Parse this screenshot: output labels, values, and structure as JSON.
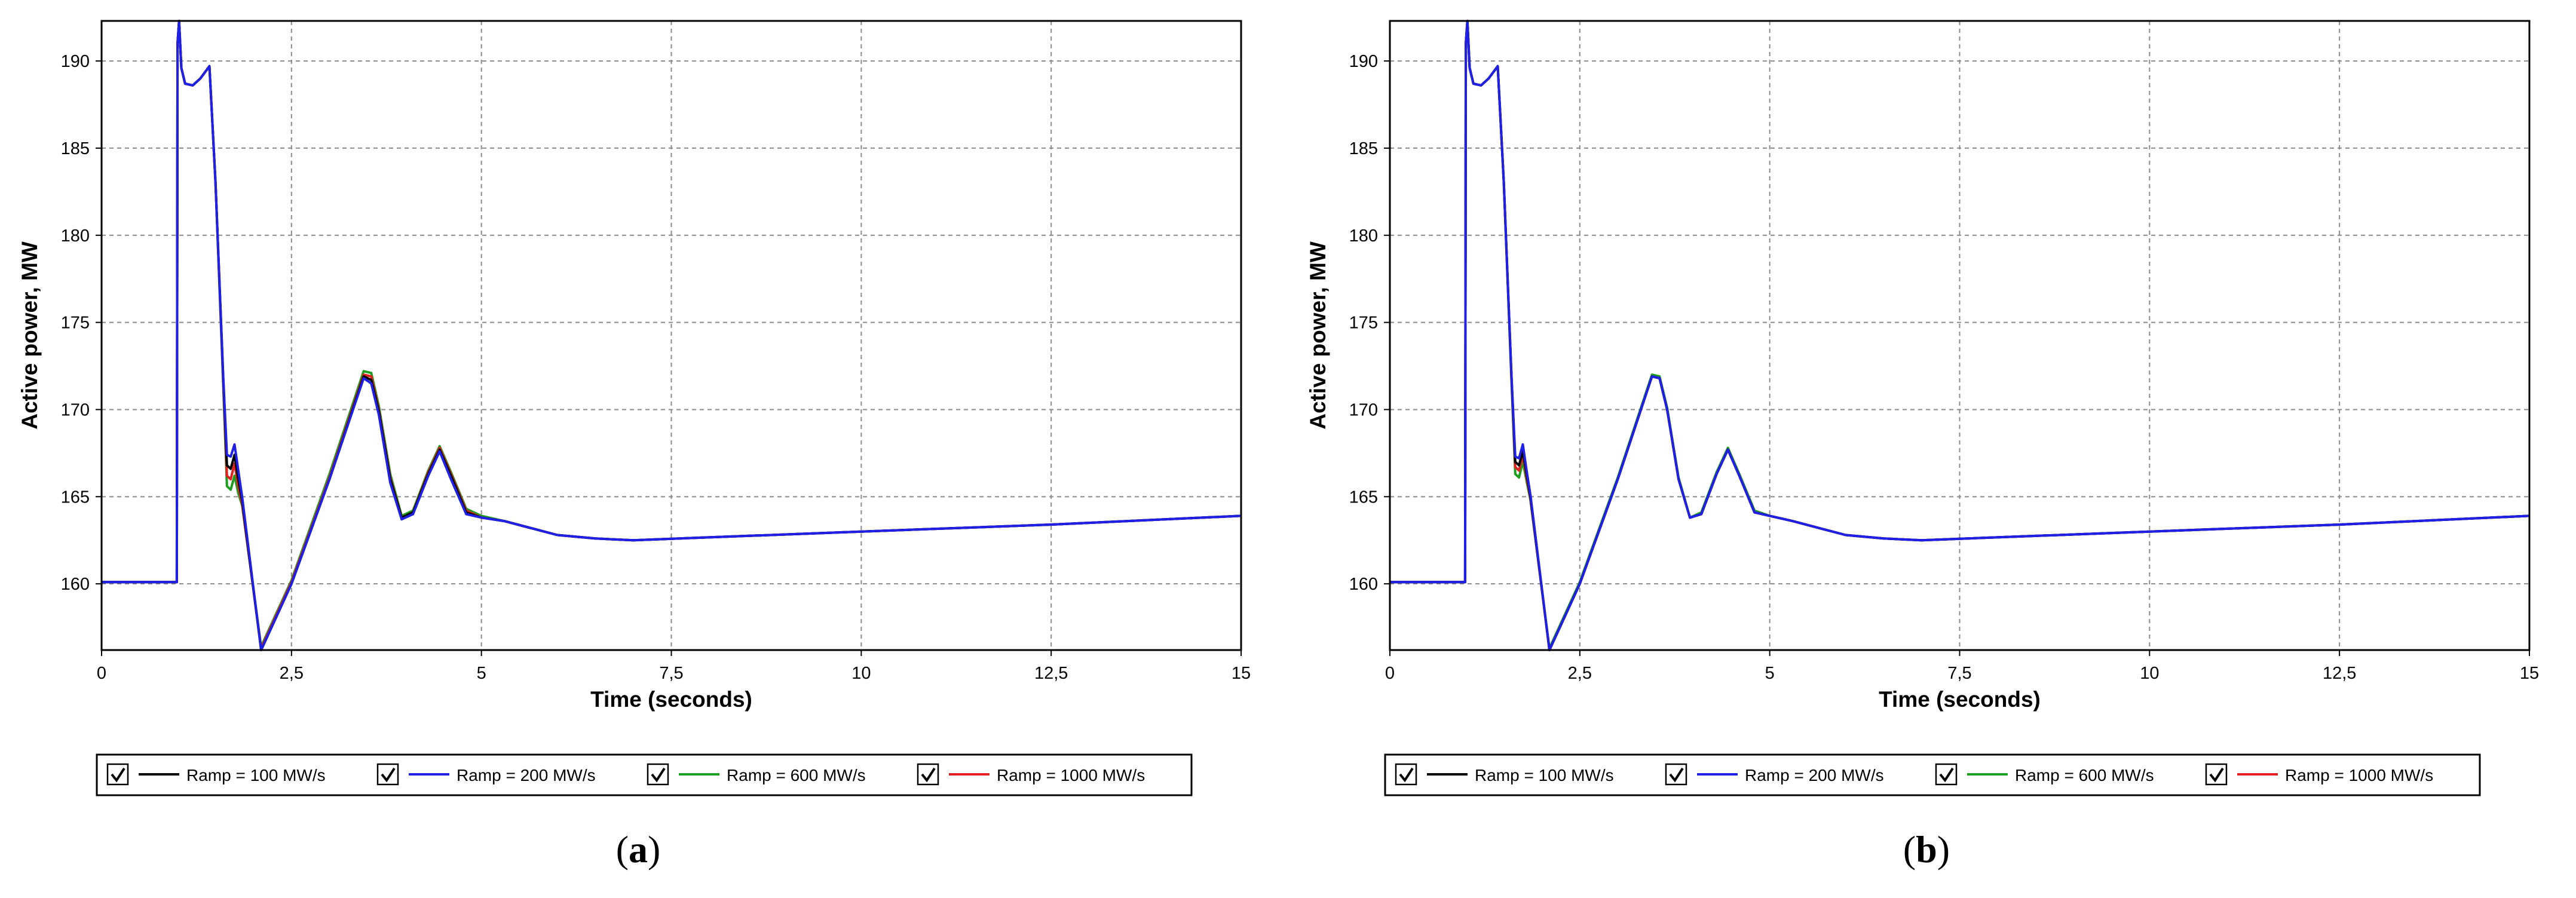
{
  "chart_data": [
    {
      "panel": "a",
      "type": "line",
      "xlabel": "Time (seconds)",
      "ylabel": "Active power, MW",
      "xlim": [
        0,
        15
      ],
      "ylim": [
        156.2,
        192.3
      ],
      "xticks": [
        0,
        2.5,
        5,
        7.5,
        10,
        12.5,
        15
      ],
      "xtick_labels": [
        "0",
        "2,5",
        "5",
        "7,5",
        "10",
        "12,5",
        "15"
      ],
      "yticks": [
        160,
        165,
        170,
        175,
        180,
        185,
        190
      ],
      "ytick_labels": [
        "160",
        "165",
        "170",
        "175",
        "180",
        "185",
        "190"
      ],
      "grid": true,
      "legend_position": "bottom",
      "legend": [
        "Ramp = 100 MW/s",
        "Ramp = 200 MW/s",
        "Ramp = 600 MW/s",
        "Ramp = 1000 MW/s"
      ],
      "series": [
        {
          "name": "Ramp = 100 MW/s",
          "color": "#000000",
          "x": [
            0,
            0.99,
            1.0,
            1.02,
            1.05,
            1.1,
            1.2,
            1.3,
            1.42,
            1.5,
            1.6,
            1.65,
            1.7,
            1.75,
            1.8,
            1.85,
            2.1,
            2.5,
            3.0,
            3.45,
            3.55,
            3.65,
            3.8,
            3.95,
            4.1,
            4.3,
            4.45,
            4.6,
            4.8,
            5.0,
            5.3,
            6.0,
            6.5,
            7.0,
            10.0,
            12.5,
            15.0
          ],
          "y": [
            160.1,
            160.1,
            191.0,
            192.3,
            189.6,
            188.7,
            188.6,
            189.0,
            189.7,
            183.0,
            172.0,
            166.8,
            166.6,
            167.4,
            166.0,
            164.8,
            156.2,
            160.0,
            166.0,
            171.9,
            171.7,
            169.9,
            166.0,
            163.8,
            164.1,
            166.3,
            167.7,
            166.2,
            164.1,
            163.8,
            163.6,
            162.8,
            162.6,
            162.5,
            163.0,
            163.4,
            163.9
          ]
        },
        {
          "name": "Ramp = 200 MW/s",
          "color": "#1f1fe6",
          "x": [
            0,
            0.99,
            1.0,
            1.02,
            1.05,
            1.1,
            1.2,
            1.3,
            1.42,
            1.5,
            1.6,
            1.65,
            1.7,
            1.75,
            1.8,
            1.85,
            2.1,
            2.5,
            3.0,
            3.45,
            3.55,
            3.65,
            3.8,
            3.95,
            4.1,
            4.3,
            4.45,
            4.6,
            4.8,
            5.0,
            5.3,
            6.0,
            6.5,
            7.0,
            10.0,
            12.5,
            15.0
          ],
          "y": [
            160.1,
            160.1,
            191.0,
            192.3,
            189.6,
            188.7,
            188.6,
            189.0,
            189.7,
            183.0,
            172.0,
            167.4,
            167.3,
            168.0,
            166.5,
            165.0,
            156.2,
            160.0,
            166.0,
            171.8,
            171.5,
            169.7,
            165.8,
            163.7,
            164.0,
            166.2,
            167.6,
            166.0,
            164.0,
            163.8,
            163.6,
            162.8,
            162.6,
            162.5,
            163.0,
            163.4,
            163.9
          ]
        },
        {
          "name": "Ramp = 600 MW/s",
          "color": "#1e9e1e",
          "x": [
            0,
            0.99,
            1.0,
            1.02,
            1.05,
            1.1,
            1.2,
            1.3,
            1.42,
            1.5,
            1.6,
            1.65,
            1.7,
            1.75,
            1.8,
            1.85,
            2.1,
            2.5,
            3.0,
            3.45,
            3.55,
            3.65,
            3.8,
            3.95,
            4.1,
            4.3,
            4.45,
            4.6,
            4.8,
            5.0,
            5.3,
            6.0,
            6.5,
            7.0,
            10.0,
            12.5,
            15.0
          ],
          "y": [
            160.1,
            160.1,
            191.0,
            192.3,
            189.6,
            188.7,
            188.6,
            189.0,
            189.7,
            183.0,
            171.5,
            165.6,
            165.4,
            166.2,
            165.2,
            164.5,
            156.4,
            160.2,
            166.3,
            172.2,
            172.1,
            170.2,
            166.3,
            163.9,
            164.2,
            166.5,
            167.9,
            166.4,
            164.3,
            163.9,
            163.6,
            162.8,
            162.6,
            162.5,
            163.0,
            163.4,
            163.9
          ]
        },
        {
          "name": "Ramp = 1000 MW/s",
          "color": "#e02020",
          "x": [
            0,
            0.99,
            1.0,
            1.02,
            1.05,
            1.1,
            1.2,
            1.3,
            1.42,
            1.5,
            1.6,
            1.65,
            1.7,
            1.75,
            1.8,
            1.85,
            2.1,
            2.5,
            3.0,
            3.45,
            3.55,
            3.65,
            3.8,
            3.95,
            4.1,
            4.3,
            4.45,
            4.6,
            4.8,
            5.0,
            5.3,
            6.0,
            6.5,
            7.0,
            10.0,
            12.5,
            15.0
          ],
          "y": [
            160.1,
            160.1,
            191.0,
            192.3,
            189.6,
            188.7,
            188.6,
            189.0,
            189.7,
            183.0,
            171.8,
            166.2,
            166.0,
            166.9,
            165.6,
            164.6,
            156.3,
            160.1,
            166.1,
            172.0,
            171.9,
            170.0,
            166.1,
            163.8,
            164.1,
            166.4,
            167.8,
            166.3,
            164.2,
            163.8,
            163.6,
            162.8,
            162.6,
            162.5,
            163.0,
            163.4,
            163.9
          ]
        }
      ]
    },
    {
      "panel": "b",
      "type": "line",
      "xlabel": "Time (seconds)",
      "ylabel": "Active power, MW",
      "xlim": [
        0,
        15
      ],
      "ylim": [
        156.2,
        192.3
      ],
      "xticks": [
        0,
        2.5,
        5,
        7.5,
        10,
        12.5,
        15
      ],
      "xtick_labels": [
        "0",
        "2,5",
        "5",
        "7,5",
        "10",
        "12,5",
        "15"
      ],
      "yticks": [
        160,
        165,
        170,
        175,
        180,
        185,
        190
      ],
      "ytick_labels": [
        "160",
        "165",
        "170",
        "175",
        "180",
        "185",
        "190"
      ],
      "grid": true,
      "legend_position": "bottom",
      "legend": [
        "Ramp = 100 MW/s",
        "Ramp = 200 MW/s",
        "Ramp = 600 MW/s",
        "Ramp = 1000 MW/s"
      ],
      "series": [
        {
          "name": "Ramp = 100 MW/s",
          "color": "#000000",
          "x": [
            0,
            0.99,
            1.0,
            1.02,
            1.05,
            1.1,
            1.2,
            1.3,
            1.42,
            1.5,
            1.6,
            1.65,
            1.7,
            1.75,
            1.8,
            1.85,
            2.1,
            2.5,
            3.0,
            3.45,
            3.55,
            3.65,
            3.8,
            3.95,
            4.1,
            4.3,
            4.45,
            4.6,
            4.8,
            5.0,
            5.3,
            6.0,
            6.5,
            7.0,
            10.0,
            12.5,
            15.0
          ],
          "y": [
            160.1,
            160.1,
            191.0,
            192.3,
            189.6,
            188.7,
            188.6,
            189.0,
            189.7,
            183.0,
            172.0,
            167.0,
            166.8,
            167.6,
            166.3,
            165.0,
            156.2,
            160.0,
            166.0,
            171.9,
            171.8,
            170.0,
            166.0,
            163.8,
            164.0,
            166.3,
            167.7,
            166.2,
            164.1,
            163.9,
            163.6,
            162.8,
            162.6,
            162.5,
            163.0,
            163.4,
            163.9
          ]
        },
        {
          "name": "Ramp = 200 MW/s",
          "color": "#1f1fe6",
          "x": [
            0,
            0.99,
            1.0,
            1.02,
            1.05,
            1.1,
            1.2,
            1.3,
            1.42,
            1.5,
            1.6,
            1.65,
            1.7,
            1.75,
            1.8,
            1.85,
            2.1,
            2.5,
            3.0,
            3.45,
            3.55,
            3.65,
            3.8,
            3.95,
            4.1,
            4.3,
            4.45,
            4.6,
            4.8,
            5.0,
            5.3,
            6.0,
            6.5,
            7.0,
            10.0,
            12.5,
            15.0
          ],
          "y": [
            160.1,
            160.1,
            191.0,
            192.3,
            189.6,
            188.7,
            188.6,
            189.0,
            189.7,
            183.0,
            172.0,
            167.3,
            167.2,
            168.0,
            166.5,
            165.1,
            156.2,
            160.0,
            166.0,
            171.9,
            171.8,
            170.0,
            166.0,
            163.8,
            164.0,
            166.3,
            167.7,
            166.2,
            164.1,
            163.9,
            163.6,
            162.8,
            162.6,
            162.5,
            163.0,
            163.4,
            163.9
          ]
        },
        {
          "name": "Ramp = 600 MW/s",
          "color": "#1e9e1e",
          "x": [
            0,
            0.99,
            1.0,
            1.02,
            1.05,
            1.1,
            1.2,
            1.3,
            1.42,
            1.5,
            1.6,
            1.65,
            1.7,
            1.75,
            1.8,
            1.85,
            2.1,
            2.5,
            3.0,
            3.45,
            3.55,
            3.65,
            3.8,
            3.95,
            4.1,
            4.3,
            4.45,
            4.6,
            4.8,
            5.0,
            5.3,
            6.0,
            6.5,
            7.0,
            10.0,
            12.5,
            15.0
          ],
          "y": [
            160.1,
            160.1,
            191.0,
            192.3,
            189.6,
            188.7,
            188.6,
            189.0,
            189.7,
            183.0,
            171.7,
            166.3,
            166.1,
            167.0,
            165.9,
            164.8,
            156.3,
            160.1,
            166.1,
            172.0,
            171.9,
            170.1,
            166.1,
            163.8,
            164.1,
            166.4,
            167.8,
            166.3,
            164.2,
            163.9,
            163.6,
            162.8,
            162.6,
            162.5,
            163.0,
            163.4,
            163.9
          ]
        },
        {
          "name": "Ramp = 1000 MW/s",
          "color": "#e02020",
          "x": [
            0,
            0.99,
            1.0,
            1.02,
            1.05,
            1.1,
            1.2,
            1.3,
            1.42,
            1.5,
            1.6,
            1.65,
            1.7,
            1.75,
            1.8,
            1.85,
            2.1,
            2.5,
            3.0,
            3.45,
            3.55,
            3.65,
            3.8,
            3.95,
            4.1,
            4.3,
            4.45,
            4.6,
            4.8,
            5.0,
            5.3,
            6.0,
            6.5,
            7.0,
            10.0,
            12.5,
            15.0
          ],
          "y": [
            160.1,
            160.1,
            191.0,
            192.3,
            189.6,
            188.7,
            188.6,
            189.0,
            189.7,
            183.0,
            171.9,
            166.7,
            166.5,
            167.4,
            166.1,
            164.9,
            156.2,
            160.0,
            166.0,
            171.9,
            171.8,
            170.0,
            166.0,
            163.8,
            164.0,
            166.3,
            167.7,
            166.2,
            164.1,
            163.9,
            163.6,
            162.8,
            162.6,
            162.5,
            163.0,
            163.4,
            163.9
          ]
        }
      ]
    }
  ],
  "captions": {
    "a": {
      "open": "(",
      "letter": "a",
      "close": ")"
    },
    "b": {
      "open": "(",
      "letter": "b",
      "close": ")"
    }
  }
}
